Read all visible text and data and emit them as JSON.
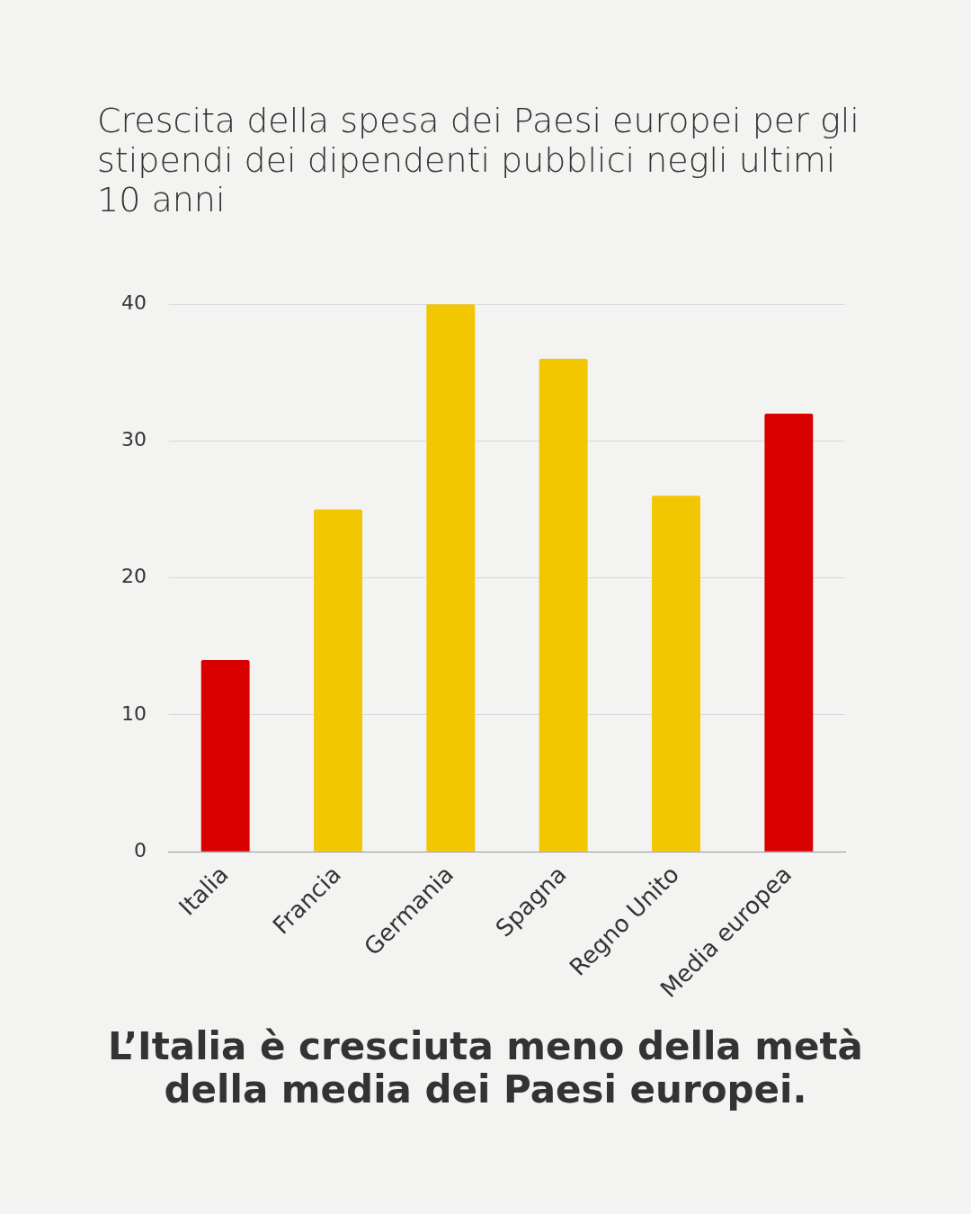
{
  "chart_data": {
    "type": "bar",
    "title": "Crescita della spesa dei Paesi europei per gli stipendi dei dipendenti pubblici negli ultimi 10 anni",
    "categories": [
      "Italia",
      "Francia",
      "Germania",
      "Spagna",
      "Regno Unito",
      "Media europea"
    ],
    "values": [
      14,
      25,
      40,
      36,
      26,
      32
    ],
    "colors": [
      "#d90000",
      "#f2c600",
      "#f2c600",
      "#f2c600",
      "#f2c600",
      "#d90000"
    ],
    "ylim": [
      0,
      40
    ],
    "yticks": [
      0,
      10,
      20,
      30,
      40
    ],
    "grid": "y",
    "legend": false,
    "annotations": [
      "L’Italia è cresciuta meno della metà della media dei Paesi europei."
    ]
  }
}
